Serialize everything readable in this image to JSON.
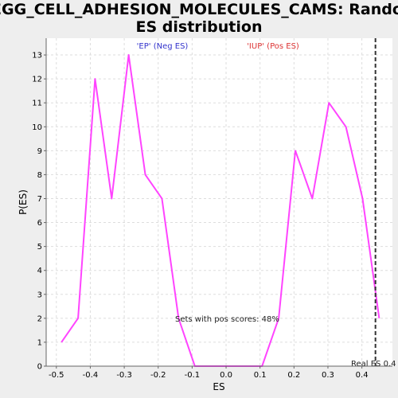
{
  "chart_data": {
    "type": "line",
    "title_line1": "KEGG_CELL_ADHESION_MOLECULES_CAMS: Random",
    "title_line2": "ES distribution",
    "xlabel": "ES",
    "ylabel": "P(ES)",
    "xlim": [
      -0.53,
      0.49
    ],
    "ylim": [
      0,
      13.7
    ],
    "x_ticks": [
      -0.5,
      -0.4,
      -0.3,
      -0.2,
      -0.1,
      0.0,
      0.1,
      0.2,
      0.3,
      0.4
    ],
    "x_tick_labels": [
      "-0.5",
      "-0.4",
      "-0.3",
      "-0.2",
      "-0.1",
      "0.0",
      "0.1",
      "0.2",
      "0.3",
      "0.4"
    ],
    "y_ticks": [
      0,
      1,
      2,
      3,
      4,
      5,
      6,
      7,
      8,
      9,
      10,
      11,
      12,
      13
    ],
    "y_tick_labels": [
      "0",
      "1",
      "2",
      "3",
      "4",
      "5",
      "6",
      "7",
      "8",
      "9",
      "10",
      "11",
      "12",
      "13"
    ],
    "grid": true,
    "series": [
      {
        "color": "#ff44ff",
        "x": [
          -0.485,
          -0.436,
          -0.386,
          -0.337,
          -0.287,
          -0.238,
          -0.189,
          -0.14,
          -0.092,
          0.106,
          0.155,
          0.204,
          0.254,
          0.303,
          0.353,
          0.402,
          0.451
        ],
        "y": [
          1,
          2,
          12,
          7,
          13,
          8,
          7,
          2,
          0,
          0,
          2,
          9,
          7,
          11,
          10,
          7,
          2
        ]
      }
    ],
    "real_es": 0.44,
    "real_es_label": "Real ES 0.4",
    "neg_label": "'EP' (Neg ES)",
    "pos_label": "'IUP' (Pos ES)",
    "annotation": "Sets with pos scores: 48%",
    "colors": {
      "line": "#ff44ff",
      "neg_label": "#3333cc",
      "pos_label": "#dd3333",
      "grid": "#dddddd",
      "real_es_line": "#333333",
      "background": "#eeeeee",
      "plot_background": "#ffffff"
    }
  }
}
